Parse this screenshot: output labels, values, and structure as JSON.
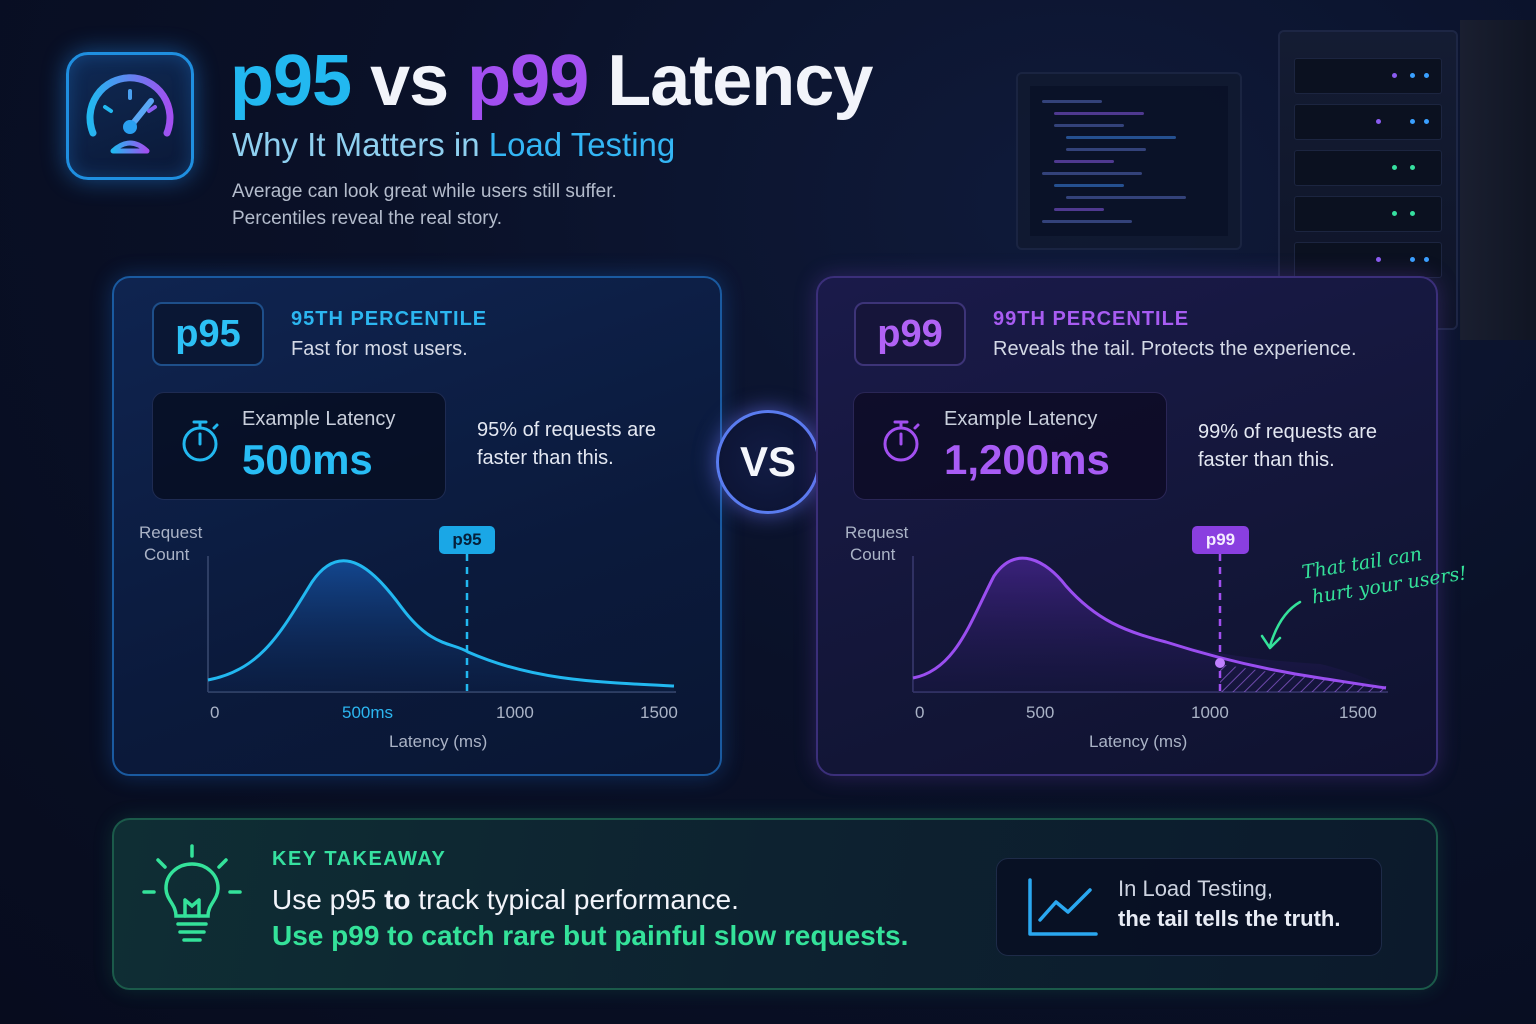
{
  "header": {
    "title_p95": "p95",
    "title_vs": " vs ",
    "title_p99": "p99",
    "title_rest": " Latency",
    "subtitle_a": "Why It Matters in ",
    "subtitle_b": "Load Testing",
    "intro_line1": "Average can look great while users still suffer.",
    "intro_line2": "Percentiles reveal the real story."
  },
  "vs_label": "VS",
  "p95_panel": {
    "badge": "p95",
    "heading": "95TH PERCENTILE",
    "subheading": "Fast for most users.",
    "latency_label": "Example Latency",
    "latency_value": "500ms",
    "note": "95% of requests are faster than this.",
    "marker_label": "p95",
    "y_axis_label_1": "Request",
    "y_axis_label_2": "Count",
    "x_axis_label": "Latency (ms)",
    "x_ticks": [
      "0",
      "500ms",
      "1000",
      "1500"
    ]
  },
  "p99_panel": {
    "badge": "p99",
    "heading": "99TH PERCENTILE",
    "subheading": "Reveals the tail. Protects the experience.",
    "latency_label": "Example Latency",
    "latency_value": "1,200ms",
    "note": "99% of requests are faster than this.",
    "marker_label": "p99",
    "y_axis_label_1": "Request",
    "y_axis_label_2": "Count",
    "x_axis_label": "Latency (ms)",
    "x_ticks": [
      "0",
      "500",
      "1000",
      "1500"
    ],
    "annotation_line1": "That tail can",
    "annotation_line2": "hurt your users!"
  },
  "takeaway": {
    "heading": "KEY TAKEAWAY",
    "line1_a": "Use p95 ",
    "line1_b": "to",
    "line1_c": " track typical performance.",
    "line2": "Use p99 to catch rare but painful slow requests.",
    "box_line1": "In Load Testing,",
    "box_line2": "the tail tells the truth."
  },
  "colors": {
    "p95_accent": "#22b8f0",
    "p99_accent": "#a24ff0",
    "takeaway_accent": "#34e29a"
  },
  "icons": [
    "speedometer-icon",
    "stopwatch-icon",
    "lightbulb-icon",
    "trend-chart-icon",
    "arrow-icon"
  ]
}
